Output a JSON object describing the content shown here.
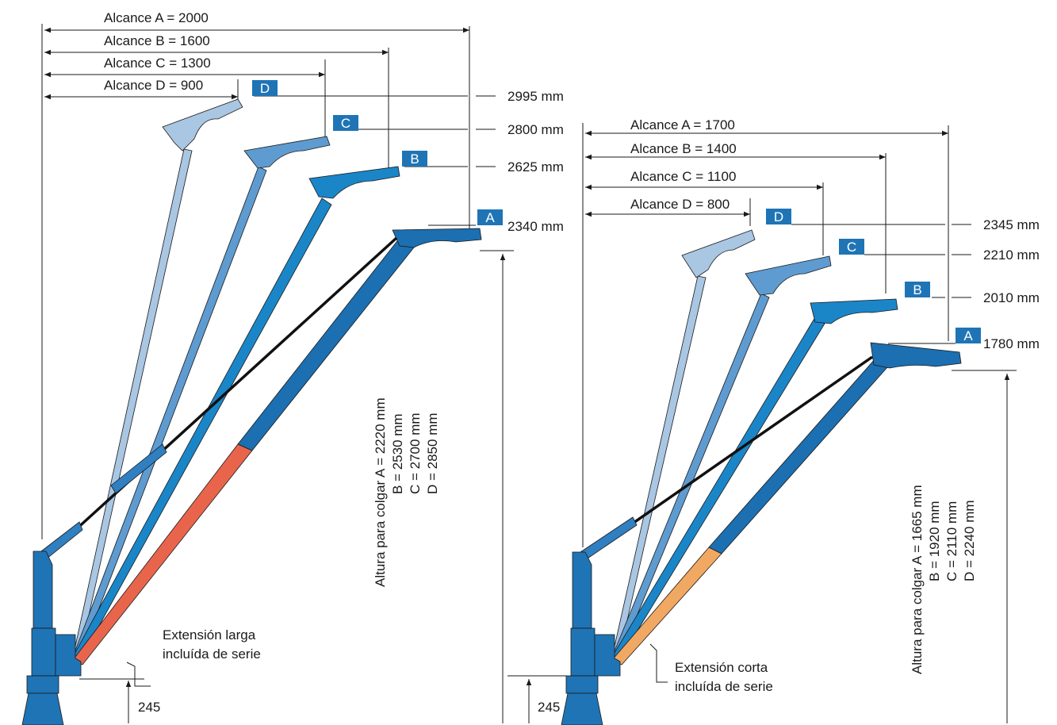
{
  "left": {
    "reach": {
      "a": "Alcance A = 2000",
      "b": "Alcance B = 1600",
      "c": "Alcance C = 1300",
      "d": "Alcance D = 900"
    },
    "tags": {
      "a": "A",
      "b": "B",
      "c": "C",
      "d": "D"
    },
    "heights": {
      "d": "2995 mm",
      "c": "2800 mm",
      "b": "2625 mm",
      "a": "2340 mm"
    },
    "hang": {
      "line1": "Altura para colgar A = 2220 mm",
      "line2": "B = 2530 mm",
      "line3": "C = 2700 mm",
      "line4": "D = 2850 mm"
    },
    "note": {
      "line1": "Extensión larga",
      "line2": "incluída de serie"
    },
    "base": "245"
  },
  "right": {
    "reach": {
      "a": "Alcance A = 1700",
      "b": "Alcance B = 1400",
      "c": "Alcance C = 1100",
      "d": "Alcance D = 800"
    },
    "tags": {
      "a": "A",
      "b": "B",
      "c": "C",
      "d": "D"
    },
    "heights": {
      "d": "2345 mm",
      "c": "2210 mm",
      "b": "2010 mm",
      "a": "1780 mm"
    },
    "hang": {
      "line1": "Altura para colgar A = 1665 mm",
      "line2": "B = 1920 mm",
      "line3": "C = 2110 mm",
      "line4": "D = 2240 mm"
    },
    "note": {
      "line1": "Extensión corta",
      "line2": "incluída de serie"
    },
    "base": "245"
  },
  "colors": {
    "crane_blue": "#1f74b5",
    "arm_d": "#a9c6e2",
    "arm_c": "#5e9bd0",
    "arm_b": "#1a86c8",
    "arm_a": "#1c6fb0",
    "ext_long": "#e8654c",
    "ext_short": "#f1a862",
    "tag_bg": "#1f74b5"
  }
}
